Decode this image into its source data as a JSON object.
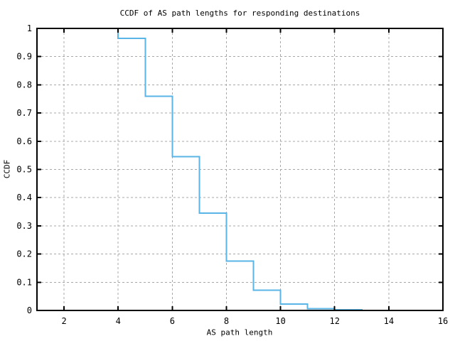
{
  "chart_data": {
    "type": "line",
    "style": "ccdf-step",
    "title": "CCDF of AS path lengths for responding destinations",
    "xlabel": "AS path length",
    "ylabel": "CCDF",
    "xlim": [
      1,
      16
    ],
    "ylim": [
      0,
      1
    ],
    "xticks": [
      2,
      4,
      6,
      8,
      10,
      12,
      14,
      16
    ],
    "xtick_labels": [
      "2",
      "4",
      "6",
      "8",
      "10",
      "12",
      "14",
      "16"
    ],
    "yticks": [
      0,
      0.1,
      0.2,
      0.3,
      0.4,
      0.5,
      0.6,
      0.7,
      0.8,
      0.9,
      1
    ],
    "ytick_labels": [
      "0",
      "0.1",
      "0.2",
      "0.3",
      "0.4",
      "0.5",
      "0.6",
      "0.7",
      "0.8",
      "0.9",
      "1"
    ],
    "grid": true,
    "legend_position": "none",
    "colors": {
      "line": "#5ab4e5",
      "grid": "#a8a8a8",
      "axis": "#000000",
      "background": "#ffffff"
    },
    "series": [
      {
        "name": "CCDF of AS path length",
        "bin_start_x": [
          4,
          5,
          6,
          7,
          8,
          9,
          10,
          11,
          12
        ],
        "bin_ccdf_values": [
          0.965,
          0.76,
          0.545,
          0.345,
          0.175,
          0.072,
          0.023,
          0.006,
          0.002
        ],
        "curve_start": [
          4,
          1.0
        ],
        "curve_end_x": 13,
        "vertices": [
          [
            4,
            1.0
          ],
          [
            4,
            0.965
          ],
          [
            5,
            0.965
          ],
          [
            5,
            0.76
          ],
          [
            6,
            0.76
          ],
          [
            6,
            0.545
          ],
          [
            7,
            0.545
          ],
          [
            7,
            0.345
          ],
          [
            8,
            0.345
          ],
          [
            8,
            0.175
          ],
          [
            9,
            0.175
          ],
          [
            9,
            0.072
          ],
          [
            10,
            0.072
          ],
          [
            10,
            0.023
          ],
          [
            11,
            0.023
          ],
          [
            11,
            0.006
          ],
          [
            12,
            0.006
          ],
          [
            12,
            0.002
          ],
          [
            13,
            0.002
          ],
          [
            13,
            0.0
          ]
        ]
      }
    ]
  }
}
